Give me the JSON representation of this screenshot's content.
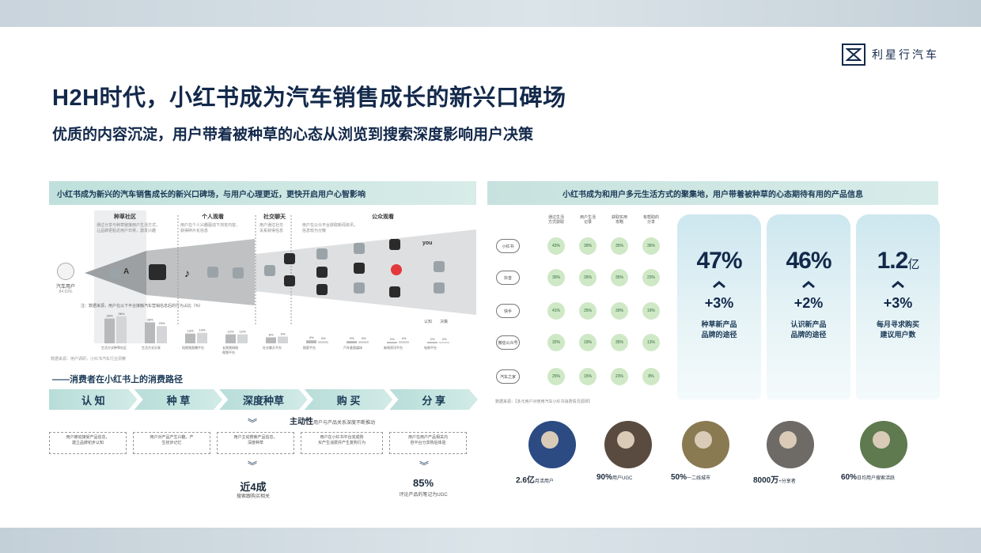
{
  "header": {
    "brand": "利星行汽车",
    "title": "H2H时代，小红书成为汽车销售成长的新兴口碑场",
    "subtitle": "优质的内容沉淀，用户带着被种草的心态从浏览到搜索深度影响用户决策"
  },
  "left_panel": {
    "heading": "小红书成为新兴的汽车销售成长的新兴口碑场，与用户心理更近，更快开启用户心智影响",
    "start_label": "汽车用户",
    "start_sub": "84.63%",
    "segments": [
      {
        "title": "种草社区",
        "desc": "通过分享与种草链接用户生活方式，\n让品牌更贴近用户日常，激发兴趣"
      },
      {
        "title": "个人观看",
        "desc": "用户在个人兴趣驱动下浏览内容，\n获得碎片化信息"
      },
      {
        "title": "社交聊天",
        "desc": "用户通过社交\n关系获得信息"
      },
      {
        "title": "公众观看",
        "desc": "用户在公众平台获取新闻资讯，\n信息较为分散"
      }
    ],
    "funnel_note": "注：数据来源，用户在以下平台接触汽车营销信息后的行为占比（%）",
    "legend": [
      "认知",
      "决策"
    ],
    "bar_groups": [
      {
        "label": "生活方式种草社区",
        "values": [
          33,
          36
        ]
      },
      {
        "label": "生活方式分享",
        "values": [
          28,
          23
        ]
      },
      {
        "label": "短视频直播平台",
        "values": [
          13,
          14
        ]
      },
      {
        "label": "长视频网络\n视频平台",
        "values": [
          12,
          12
        ]
      },
      {
        "label": "社交聊天平台",
        "values": [
          8,
          9
        ]
      },
      {
        "label": "搜索平台",
        "values": [
          4,
          3
        ]
      },
      {
        "label": "汽车垂直媒体",
        "values": [
          3,
          3
        ]
      },
      {
        "label": "新闻资讯平台",
        "values": [
          2,
          3
        ]
      },
      {
        "label": "电商平台",
        "values": [
          2,
          2
        ]
      }
    ],
    "source_note": "数据来源：用户调研，小红书汽车行业洞察"
  },
  "consumer_path": {
    "title": "——消费者在小红书上的消费路径",
    "stages": [
      "认 知",
      "种 草",
      "深度种草",
      "购 买",
      "分 享"
    ],
    "active_label": "主动性",
    "active_sub": "用户与产品关系深度不断推动",
    "descriptions": [
      "用户被动接受产品信息，\n建立品牌初步认知",
      "用户对产品产生兴趣，产\n生初步记忆",
      "用户主动搜索产品信息，\n深度种草",
      "用户在小红书平台完成购\n买产生消费并产生复购行为",
      "用户在用户产品相关内\n容平台分享购后体验"
    ],
    "stat1_value": "近4成",
    "stat1_label": "搜索跟购买相关",
    "stat2_value": "85%",
    "stat2_label": "评论产品的笔记为UGC"
  },
  "right_panel": {
    "heading": "小红书成为和用户多元生活方式的聚集地，用户带着被种草的心态期待有用的产品信息",
    "columns": [
      "通过生活\n方式获取",
      "用户生活\n记录",
      "获取实用\n攻略",
      "有帮助的\n分享"
    ],
    "rows": [
      {
        "label": "小红书",
        "values": [
          "43%",
          "39%",
          "35%",
          "36%"
        ]
      },
      {
        "label": "抖音",
        "values": [
          "39%",
          "26%",
          "35%",
          "23%"
        ]
      },
      {
        "label": "快手",
        "values": [
          "41%",
          "25%",
          "30%",
          "19%"
        ]
      },
      {
        "label": "微信公众号",
        "values": [
          "32%",
          "19%",
          "35%",
          "13%"
        ]
      },
      {
        "label": "汽车之家",
        "values": [
          "25%",
          "15%",
          "23%",
          "8%"
        ]
      }
    ],
    "matrix_note": "数据来源：【多元用户对使用汽车小红书消费情况调研】",
    "kpis": [
      {
        "value": "47%",
        "unit": "",
        "delta": "+3%",
        "label": "种草新产品\n品牌的途径"
      },
      {
        "value": "46%",
        "unit": "",
        "delta": "+2%",
        "label": "认识新产品\n品牌的途径"
      },
      {
        "value": "1.2",
        "unit": "亿",
        "delta": "+3%",
        "label": "每月寻求购买\n建议用户数"
      }
    ],
    "personas": [
      {
        "value": "2.6亿",
        "label": "月活用户",
        "color": "#2b4b82"
      },
      {
        "value": "90%",
        "label": "用户UGC",
        "color": "#5a4b40"
      },
      {
        "value": "50%",
        "label": "一二线城市",
        "color": "#8a7a52"
      },
      {
        "value": "8000万",
        "label": "+分享者",
        "color": "#6e6a66"
      },
      {
        "value": "60%",
        "label": "日均用户搜索活跃",
        "color": "#5f7a4f"
      }
    ]
  }
}
